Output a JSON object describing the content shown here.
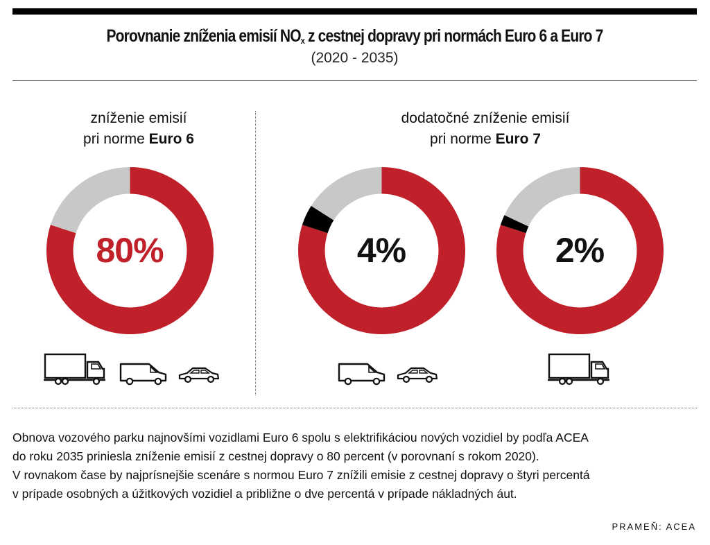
{
  "header": {
    "title_main": "Porovnanie zníženia emisií NO",
    "title_sub": "x",
    "title_rest": " z cestnej dopravy pri normách Euro 6 a Euro 7",
    "period": "(2020 - 2035)"
  },
  "left_section": {
    "label_line1": "zníženie emisií",
    "label_line2_prefix": "pri norme ",
    "label_line2_bold": "Euro 6"
  },
  "right_section": {
    "label_line1": "dodatočné zníženie emisií",
    "label_line2_prefix": "pri norme ",
    "label_line2_bold": "Euro 7"
  },
  "colors": {
    "red": "#C0202A",
    "grey": "#C8C8C8",
    "black": "#000000"
  },
  "chart_data": [
    {
      "type": "pie",
      "center_label": "80%",
      "slices": [
        {
          "value": 80,
          "color": "#C0202A"
        },
        {
          "value": 20,
          "color": "#C8C8C8"
        }
      ],
      "vehicles": [
        "truck",
        "van",
        "car"
      ]
    },
    {
      "type": "pie",
      "center_label": "4%",
      "slices": [
        {
          "value": 80,
          "color": "#C0202A"
        },
        {
          "value": 4,
          "color": "#000000"
        },
        {
          "value": 16,
          "color": "#C8C8C8"
        }
      ],
      "vehicles": [
        "van",
        "car"
      ]
    },
    {
      "type": "pie",
      "center_label": "2%",
      "slices": [
        {
          "value": 80,
          "color": "#C0202A"
        },
        {
          "value": 2,
          "color": "#000000"
        },
        {
          "value": 18,
          "color": "#C8C8C8"
        }
      ],
      "vehicles": [
        "truck"
      ]
    }
  ],
  "note": {
    "line1": "Obnova vozového parku najnovšími vozidlami Euro 6 spolu s elektrifikáciou nových vozidiel by podľa ACEA",
    "line2": "do roku 2035 priniesla zníženie emisií z cestnej dopravy o 80 percent (v porovnaní s rokom 2020).",
    "line3": "V rovnakom čase by najprísnejšie scenáre s normou Euro 7 znížili emisie z cestnej dopravy o štyri percentá",
    "line4": "v prípade osobných a úžitkových vozidiel a približne o dve percentá v prípade nákladných áut."
  },
  "source": "PRAMEŇ: ACEA"
}
